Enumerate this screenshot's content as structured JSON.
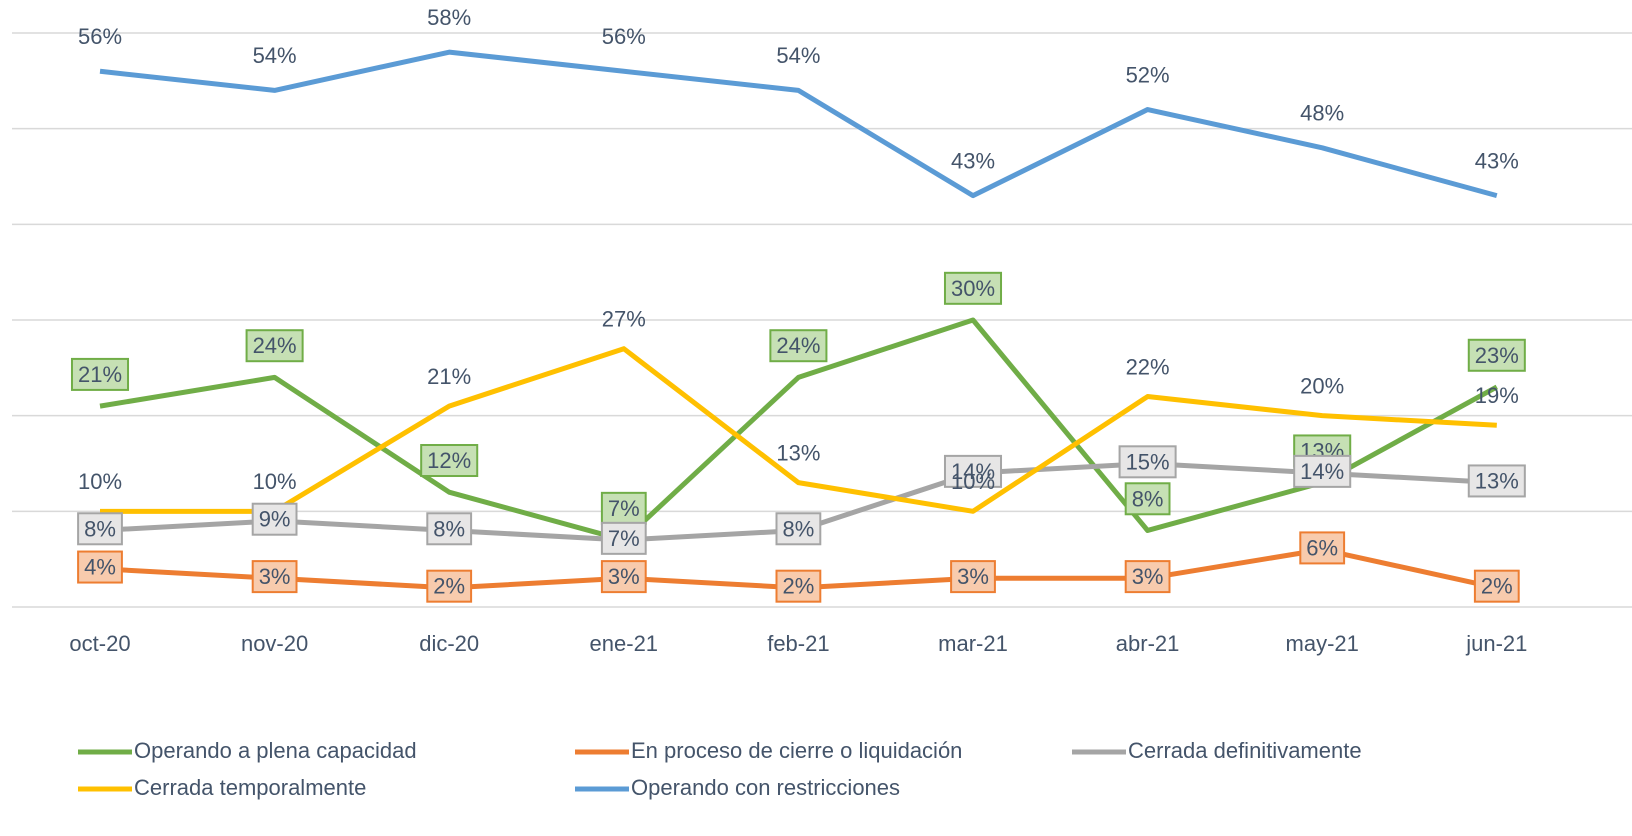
{
  "chart_data": {
    "type": "line",
    "categories": [
      "oct-20",
      "nov-20",
      "dic-20",
      "ene-21",
      "feb-21",
      "mar-21",
      "abr-21",
      "may-21",
      "jun-21"
    ],
    "ylim": [
      0,
      60
    ],
    "yticks": [
      0,
      10,
      20,
      30,
      40,
      50,
      60
    ],
    "grid": true,
    "legend": "bottom",
    "series": [
      {
        "name": "Operando a plena capacidad",
        "color": "#70ad47",
        "values": [
          21,
          24,
          12,
          7,
          24,
          30,
          8,
          13,
          23
        ],
        "value_labels": [
          "21%",
          "24%",
          "12%",
          "7%",
          "24%",
          "30%",
          "8%",
          "13%",
          "23%"
        ]
      },
      {
        "name": "En proceso de cierre o liquidación",
        "color": "#ed7d31",
        "values": [
          4,
          3,
          2,
          3,
          2,
          3,
          3,
          6,
          2
        ],
        "value_labels": [
          "4%",
          "3%",
          "2%",
          "3%",
          "2%",
          "3%",
          "3%",
          "6%",
          "2%"
        ]
      },
      {
        "name": "Cerrada definitivamente",
        "color": "#a5a5a5",
        "values": [
          8,
          9,
          8,
          7,
          8,
          14,
          15,
          14,
          13
        ],
        "value_labels": [
          "8%",
          "9%",
          "8%",
          "7%",
          "8%",
          "14%",
          "15%",
          "14%",
          "13%"
        ]
      },
      {
        "name": "Cerrada temporalmente",
        "color": "#ffc000",
        "values": [
          10,
          10,
          21,
          27,
          13,
          10,
          22,
          20,
          19
        ],
        "value_labels": [
          "10%",
          "10%",
          "21%",
          "27%",
          "13%",
          "10%",
          "22%",
          "20%",
          "19%"
        ]
      },
      {
        "name": "Operando con restricciones",
        "color": "#5b9bd5",
        "values": [
          56,
          54,
          58,
          56,
          54,
          43,
          52,
          48,
          43
        ],
        "value_labels": [
          "56%",
          "54%",
          "58%",
          "56%",
          "54%",
          "43%",
          "52%",
          "48%",
          "43%"
        ]
      }
    ]
  }
}
